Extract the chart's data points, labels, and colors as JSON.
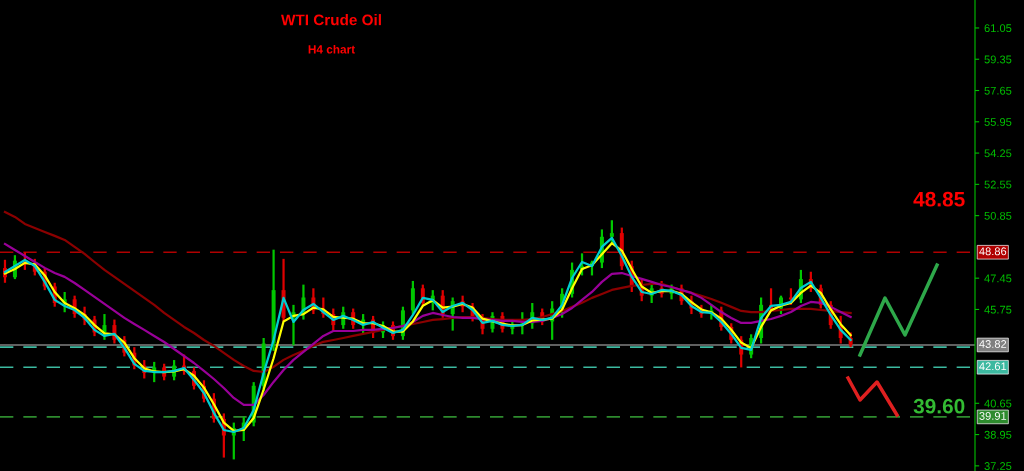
{
  "chart_data": {
    "type": "candlestick",
    "title": "WTI Crude Oil",
    "subtitle": "H4 chart",
    "categories": [
      null,
      null,
      null,
      null,
      null,
      null,
      null,
      null,
      null,
      null,
      null,
      null,
      null,
      null,
      null,
      null,
      null,
      null,
      null,
      null,
      null,
      null,
      null,
      null,
      null,
      null,
      null,
      null,
      null,
      null,
      null,
      null,
      null,
      null,
      null,
      null,
      null,
      null,
      null,
      null,
      null,
      null,
      null,
      null,
      null,
      null,
      null,
      null,
      null,
      null,
      null,
      null,
      null,
      null,
      null,
      null,
      null,
      null,
      null,
      null,
      null,
      null,
      null,
      null,
      null,
      null,
      null,
      null,
      null,
      null,
      null,
      null,
      null,
      null,
      null,
      null,
      null,
      null,
      null,
      null,
      null,
      null,
      null,
      null,
      null,
      null
    ],
    "ohlc": [
      [
        48.0,
        48.45,
        47.2,
        47.5
      ],
      [
        47.5,
        48.7,
        47.4,
        48.4
      ],
      [
        48.4,
        48.85,
        47.9,
        48.2
      ],
      [
        48.2,
        48.5,
        47.6,
        47.8
      ],
      [
        47.8,
        48.0,
        46.8,
        47.0
      ],
      [
        47.0,
        47.2,
        45.9,
        46.1
      ],
      [
        46.1,
        46.7,
        45.6,
        46.3
      ],
      [
        46.3,
        46.5,
        45.3,
        45.5
      ],
      [
        45.5,
        45.9,
        44.9,
        45.2
      ],
      [
        45.2,
        45.4,
        44.3,
        44.5
      ],
      [
        44.5,
        45.5,
        44.1,
        44.9
      ],
      [
        44.9,
        45.2,
        43.9,
        44.1
      ],
      [
        44.1,
        44.3,
        43.2,
        43.4
      ],
      [
        43.4,
        43.7,
        42.5,
        42.7
      ],
      [
        42.7,
        43.0,
        42.0,
        42.3
      ],
      [
        42.3,
        42.9,
        41.8,
        42.6
      ],
      [
        42.6,
        42.8,
        41.9,
        42.1
      ],
      [
        42.1,
        43.0,
        41.9,
        42.7
      ],
      [
        42.7,
        43.3,
        42.2,
        42.4
      ],
      [
        42.4,
        42.6,
        41.4,
        41.6
      ],
      [
        41.6,
        41.9,
        40.7,
        40.9
      ],
      [
        40.9,
        41.2,
        39.6,
        39.8
      ],
      [
        39.8,
        40.1,
        37.7,
        38.9
      ],
      [
        38.9,
        39.6,
        37.6,
        39.3
      ],
      [
        39.3,
        39.9,
        38.6,
        39.6
      ],
      [
        39.6,
        41.8,
        39.4,
        41.6
      ],
      [
        41.6,
        44.2,
        41.3,
        43.9
      ],
      [
        43.9,
        49.0,
        43.5,
        46.8
      ],
      [
        46.8,
        48.5,
        45.1,
        45.3
      ],
      [
        45.3,
        46.0,
        43.8,
        45.6
      ],
      [
        45.6,
        47.1,
        45.2,
        46.4
      ],
      [
        46.4,
        46.9,
        45.5,
        45.7
      ],
      [
        45.7,
        46.4,
        45.3,
        45.5
      ],
      [
        45.5,
        45.8,
        44.6,
        44.9
      ],
      [
        44.9,
        45.9,
        44.7,
        45.6
      ],
      [
        45.6,
        45.8,
        44.7,
        44.9
      ],
      [
        44.9,
        45.5,
        44.4,
        45.2
      ],
      [
        45.2,
        45.4,
        44.2,
        44.5
      ],
      [
        44.5,
        45.1,
        44.2,
        44.9
      ],
      [
        44.9,
        45.1,
        44.1,
        44.3
      ],
      [
        44.3,
        45.9,
        44.1,
        45.7
      ],
      [
        45.7,
        47.3,
        45.5,
        46.9
      ],
      [
        46.9,
        47.1,
        45.9,
        46.1
      ],
      [
        46.1,
        46.8,
        45.7,
        46.5
      ],
      [
        46.5,
        46.8,
        45.3,
        45.5
      ],
      [
        45.5,
        46.4,
        44.6,
        46.2
      ],
      [
        46.2,
        46.5,
        45.6,
        45.9
      ],
      [
        45.9,
        46.1,
        45.1,
        45.3
      ],
      [
        45.3,
        45.5,
        44.4,
        44.7
      ],
      [
        44.7,
        45.6,
        44.5,
        45.4
      ],
      [
        45.4,
        45.6,
        44.5,
        44.7
      ],
      [
        44.7,
        45.1,
        44.4,
        44.9
      ],
      [
        44.9,
        45.6,
        44.4,
        45.0
      ],
      [
        45.0,
        46.1,
        44.7,
        45.6
      ],
      [
        45.6,
        45.8,
        44.9,
        45.1
      ],
      [
        45.1,
        46.2,
        44.1,
        45.8
      ],
      [
        45.8,
        46.9,
        45.3,
        46.6
      ],
      [
        46.6,
        48.3,
        46.4,
        47.9
      ],
      [
        47.9,
        48.8,
        47.6,
        48.1
      ],
      [
        48.1,
        48.4,
        47.6,
        48.3
      ],
      [
        48.3,
        50.1,
        48.0,
        49.7
      ],
      [
        49.7,
        50.6,
        49.3,
        49.9
      ],
      [
        49.9,
        50.2,
        47.9,
        48.1
      ],
      [
        48.1,
        48.4,
        46.7,
        47.0
      ],
      [
        47.0,
        47.4,
        46.2,
        46.5
      ],
      [
        46.5,
        47.2,
        46.1,
        46.9
      ],
      [
        46.9,
        47.3,
        46.4,
        46.6
      ],
      [
        46.6,
        47.1,
        46.3,
        46.9
      ],
      [
        46.9,
        47.1,
        46.0,
        46.2
      ],
      [
        46.2,
        46.5,
        45.5,
        45.8
      ],
      [
        45.8,
        46.0,
        45.3,
        45.5
      ],
      [
        45.5,
        46.0,
        45.2,
        45.7
      ],
      [
        45.7,
        45.9,
        44.6,
        44.8
      ],
      [
        44.8,
        45.0,
        43.9,
        44.1
      ],
      [
        44.1,
        44.3,
        42.6,
        43.3
      ],
      [
        43.3,
        44.4,
        43.1,
        44.2
      ],
      [
        44.2,
        46.4,
        43.9,
        46.0
      ],
      [
        46.0,
        46.9,
        45.7,
        45.8
      ],
      [
        45.8,
        46.5,
        45.5,
        46.4
      ],
      [
        46.4,
        46.9,
        46.0,
        46.3
      ],
      [
        46.3,
        47.9,
        46.1,
        47.4
      ],
      [
        47.4,
        47.8,
        46.7,
        46.9
      ],
      [
        46.9,
        47.1,
        45.8,
        46.0
      ],
      [
        46.0,
        46.2,
        44.7,
        44.9
      ],
      [
        44.9,
        45.4,
        43.9,
        44.2
      ],
      [
        44.2,
        44.5,
        43.7,
        43.82
      ]
    ],
    "series": [
      {
        "type": "line",
        "color": "#8b0000",
        "values": [
          51.05,
          50.78,
          50.4,
          50.18,
          49.96,
          49.75,
          49.53,
          49.15,
          48.77,
          48.33,
          47.9,
          47.52,
          47.14,
          46.76,
          46.38,
          46.0,
          45.56,
          45.18,
          44.8,
          44.47,
          44.09,
          43.77,
          43.39,
          43.01,
          42.68,
          42.41,
          42.35,
          42.63,
          43.01,
          43.28,
          43.5,
          43.77,
          43.99,
          44.09,
          44.2,
          44.31,
          44.42,
          44.53,
          44.64,
          44.75,
          44.85,
          44.96,
          45.07,
          45.18,
          45.23,
          45.29,
          45.34,
          45.34,
          45.29,
          45.23,
          45.18,
          45.18,
          45.18,
          45.23,
          45.34,
          45.5,
          45.67,
          45.89,
          46.11,
          46.38,
          46.59,
          46.81,
          46.92,
          47.03,
          47.08,
          47.14,
          47.14,
          46.97,
          46.81,
          46.65,
          46.49,
          46.32,
          46.11,
          45.89,
          45.67,
          45.61,
          45.61,
          45.67,
          45.72,
          45.78,
          45.78,
          45.78,
          45.72,
          45.67,
          45.61,
          45.56
        ]
      },
      {
        "type": "line",
        "color": "#990099",
        "values": [
          49.31,
          48.98,
          48.66,
          48.33,
          48.01,
          47.73,
          47.52,
          47.19,
          46.81,
          46.43,
          46.05,
          45.67,
          45.29,
          44.96,
          44.64,
          44.31,
          43.98,
          43.6,
          43.22,
          42.84,
          42.41,
          41.97,
          41.48,
          40.94,
          40.56,
          40.56,
          41.1,
          41.81,
          42.46,
          43.01,
          43.44,
          43.88,
          44.31,
          44.58,
          44.58,
          44.58,
          44.64,
          44.64,
          44.69,
          44.75,
          44.85,
          45.07,
          45.4,
          45.56,
          45.45,
          45.34,
          45.29,
          45.29,
          45.23,
          45.18,
          45.13,
          45.13,
          45.07,
          45.07,
          45.13,
          45.29,
          45.5,
          45.83,
          46.27,
          46.7,
          47.25,
          47.68,
          47.73,
          47.57,
          47.41,
          47.25,
          47.08,
          46.97,
          46.81,
          46.65,
          46.38,
          46.0,
          45.61,
          45.29,
          45.02,
          45.02,
          45.13,
          45.23,
          45.4,
          45.61,
          45.94,
          46.16,
          46.11,
          45.89,
          45.61,
          45.34
        ]
      },
      {
        "type": "line",
        "color": "#ffff00",
        "values": [
          47.7,
          47.95,
          48.28,
          48.2,
          47.6,
          46.7,
          46.1,
          45.82,
          45.45,
          44.9,
          44.45,
          44.4,
          43.95,
          43.1,
          42.55,
          42.38,
          42.35,
          42.38,
          42.5,
          42.15,
          41.5,
          40.6,
          39.6,
          39.15,
          39.2,
          39.85,
          41.4,
          43.1,
          45.1,
          45.4,
          45.5,
          45.85,
          45.75,
          45.35,
          45.3,
          45.25,
          45.0,
          45.0,
          44.85,
          44.55,
          44.55,
          45.1,
          45.95,
          46.25,
          45.85,
          45.9,
          46.05,
          45.85,
          45.25,
          45.1,
          44.98,
          44.88,
          44.9,
          45.15,
          45.2,
          45.25,
          45.75,
          46.9,
          47.95,
          48.15,
          48.75,
          49.35,
          48.95,
          47.95,
          47.0,
          46.65,
          46.75,
          46.76,
          46.6,
          46.15,
          45.75,
          45.6,
          45.25,
          44.65,
          43.95,
          43.65,
          44.8,
          45.7,
          45.95,
          46.1,
          46.65,
          47.05,
          46.65,
          45.75,
          44.95,
          44.35
        ]
      },
      {
        "type": "line",
        "color": "#00ced1",
        "values": [
          47.79,
          48.11,
          48.44,
          48.11,
          47.25,
          46.27,
          45.94,
          45.72,
          45.29,
          44.64,
          44.31,
          44.42,
          43.66,
          42.79,
          42.41,
          42.35,
          42.35,
          42.41,
          42.57,
          41.92,
          41.21,
          40.13,
          39.2,
          39.09,
          39.31,
          40.29,
          42.3,
          44.09,
          46.38,
          45.07,
          45.72,
          46.05,
          45.61,
          45.18,
          45.4,
          45.18,
          44.91,
          45.07,
          44.75,
          44.47,
          44.64,
          45.45,
          46.38,
          46.27,
          45.61,
          45.94,
          46.11,
          45.72,
          45.02,
          45.13,
          44.91,
          44.85,
          44.91,
          45.29,
          45.18,
          45.29,
          46.0,
          47.46,
          48.33,
          48.11,
          49.15,
          49.64,
          48.66,
          47.52,
          46.7,
          46.59,
          46.81,
          46.76,
          46.54,
          45.94,
          45.61,
          45.56,
          45.07,
          44.42,
          43.66,
          43.55,
          45.29,
          45.94,
          46.0,
          46.16,
          46.92,
          47.25,
          46.38,
          45.45,
          44.64,
          44.09
        ]
      }
    ],
    "ylim": [
      36.97,
      62.57
    ],
    "yticks": [
      61.05,
      59.35,
      57.65,
      55.95,
      54.25,
      52.55,
      50.85,
      47.45,
      45.75,
      40.65,
      38.95,
      37.25
    ],
    "ref_lines": [
      {
        "axis": "y",
        "value": 48.86,
        "label": "48.86",
        "color": "#b00000",
        "line_style": "dashed"
      },
      {
        "axis": "y",
        "value": 43.82,
        "label": "43.82",
        "color": "#808080",
        "line_style": "solid"
      },
      {
        "axis": "y",
        "value": 43.7,
        "label": null,
        "color": "#3cb9a0",
        "line_style": "dashed"
      },
      {
        "axis": "y",
        "value": 42.61,
        "label": "42.61",
        "color": "#3cb9a0",
        "line_style": "dashed"
      },
      {
        "axis": "y",
        "value": 39.91,
        "label": "39.91",
        "color": "#2e8b2e",
        "line_style": "dashed"
      }
    ],
    "annotations": [
      "48.85",
      "39.60"
    ],
    "tick_labels": "y"
  }
}
